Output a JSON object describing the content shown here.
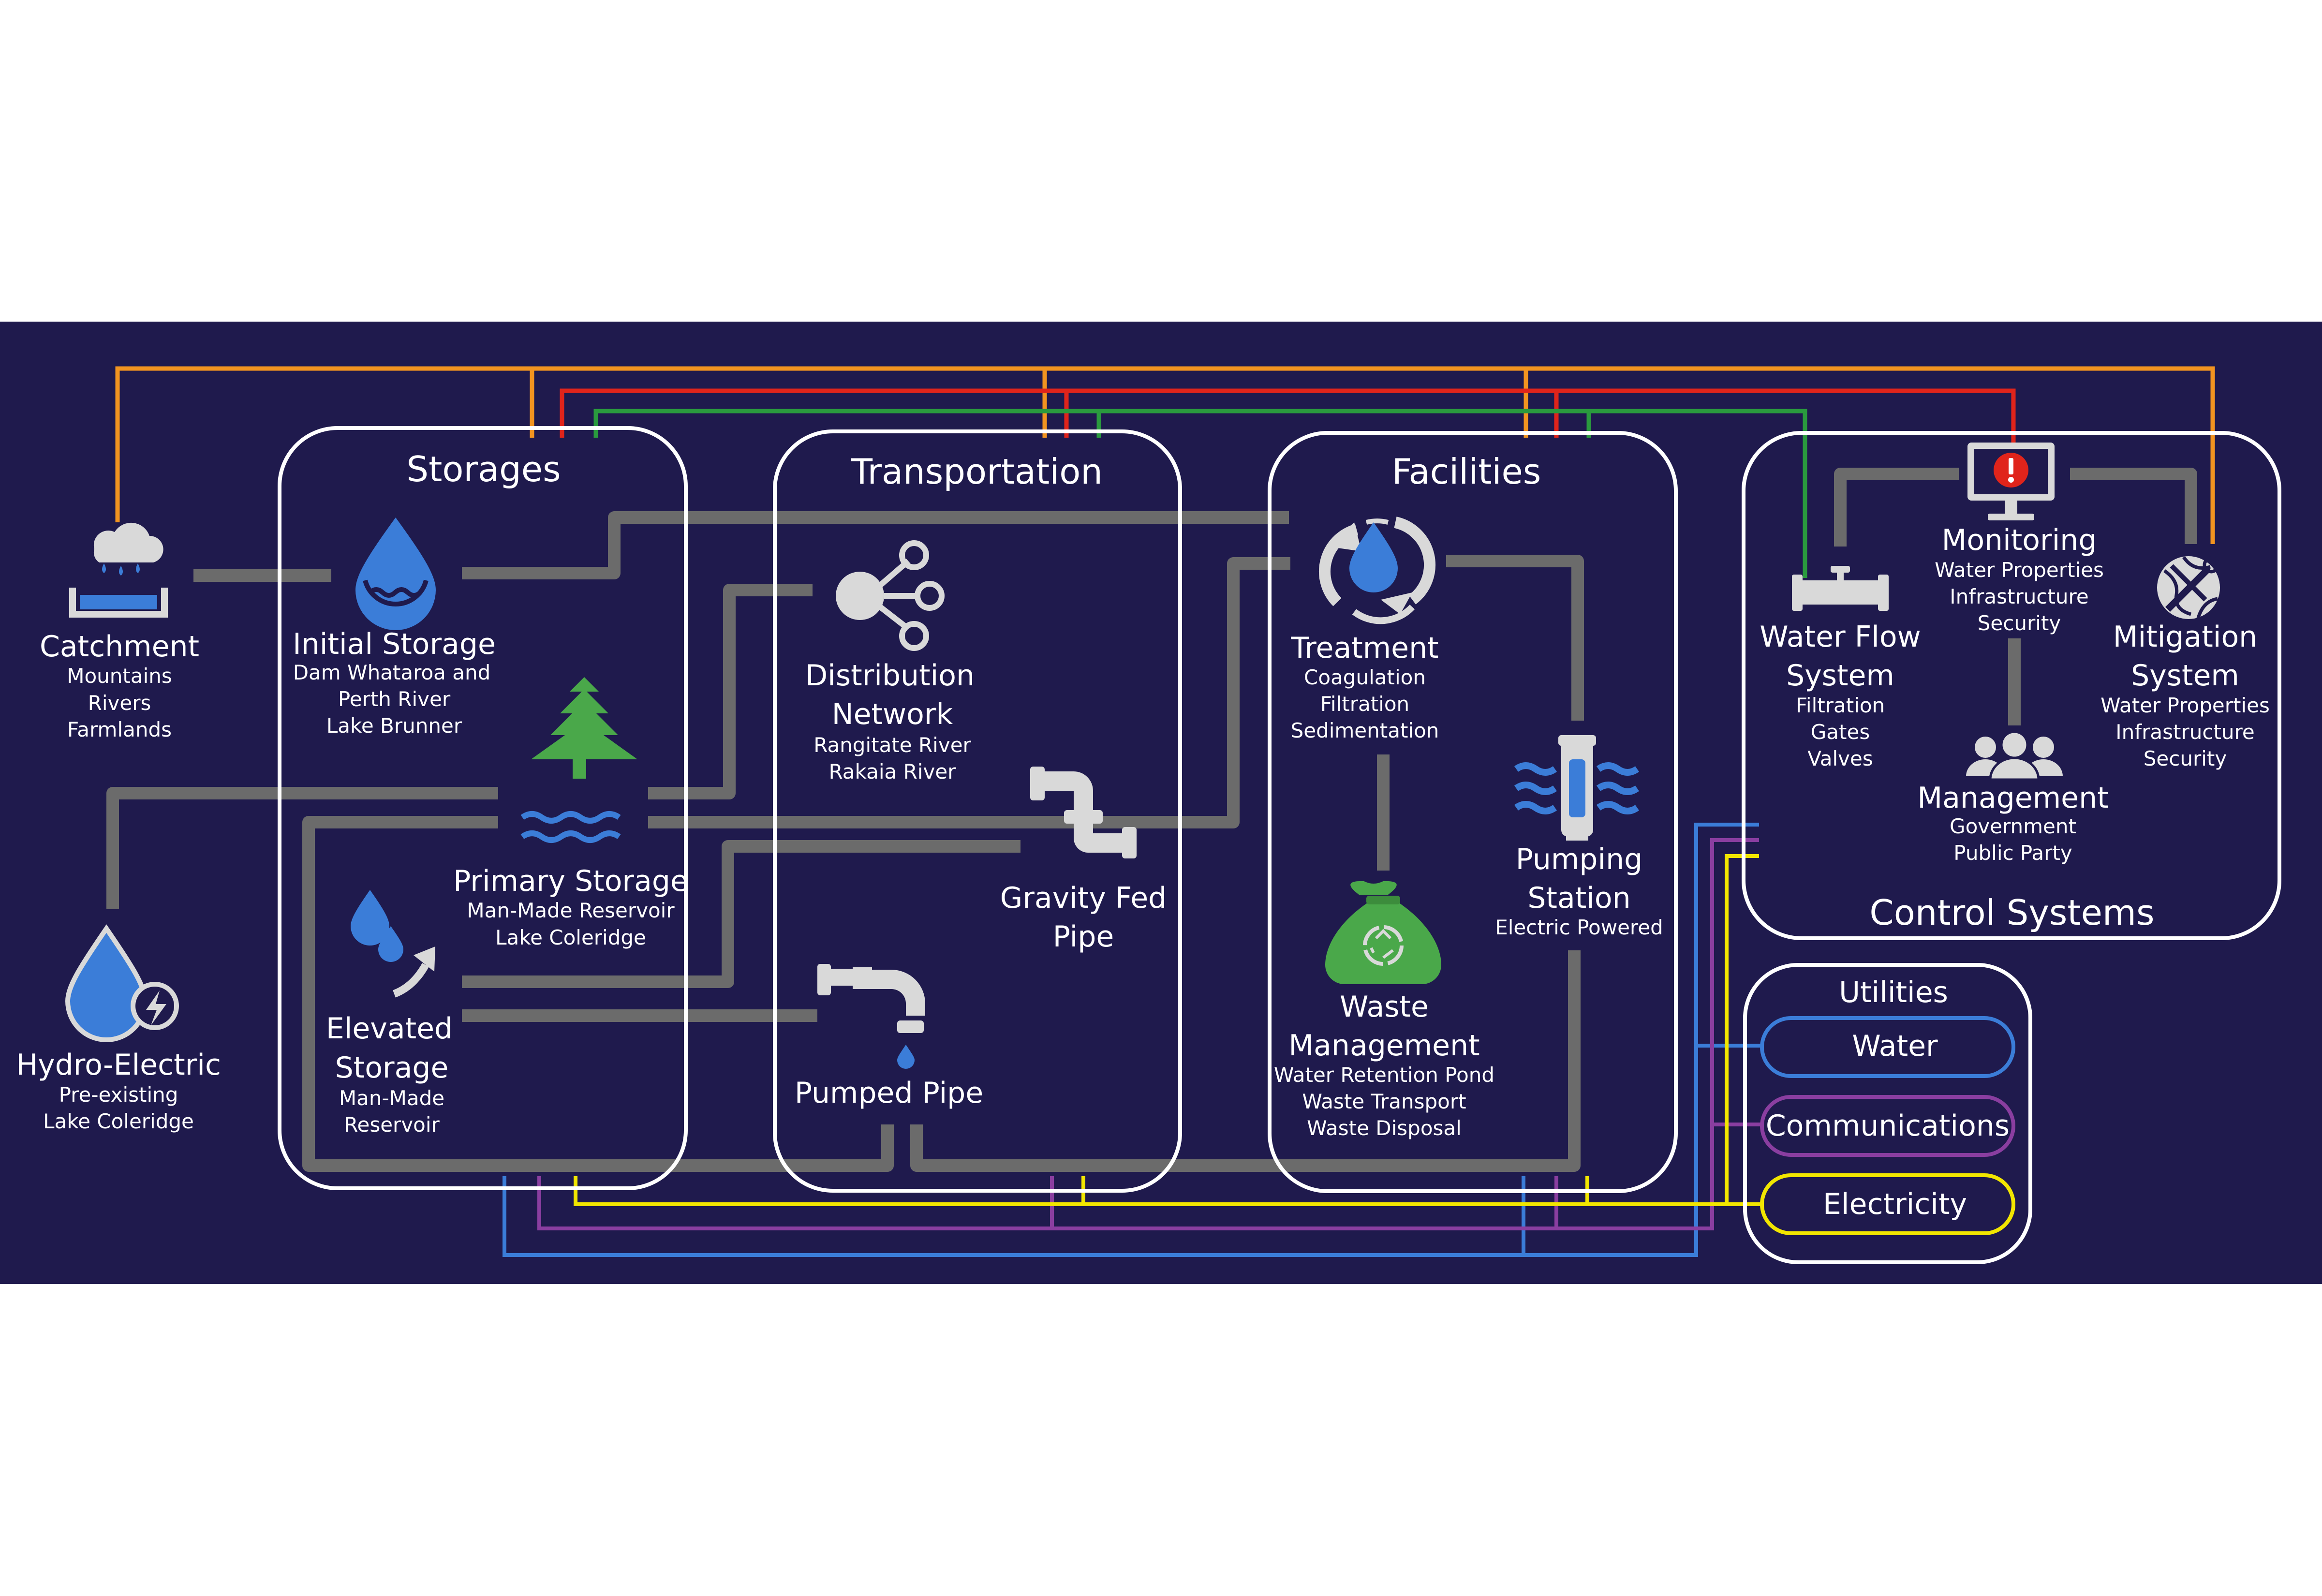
{
  "colors": {
    "background": "#1f1a4d",
    "pipe": "#6b6b6b",
    "panel_border": "#ffffff",
    "water": "#3b7dd8",
    "communications": "#8a3ea0",
    "electricity": "#f2e600",
    "control_orange": "#f29420",
    "control_red": "#e0241b",
    "control_green": "#2a9a3e",
    "tree_green": "#4aa84a",
    "icon_grey": "#d9d9d9"
  },
  "panels": {
    "storages": "Storages",
    "transportation": "Transportation",
    "facilities": "Facilities",
    "control_systems": "Control Systems",
    "utilities": "Utilities"
  },
  "nodes": {
    "catchment": {
      "title": "Catchment",
      "lines": [
        "Mountains",
        "Rivers",
        "Farmlands"
      ],
      "icon": "rain-basin-icon"
    },
    "hydro": {
      "title": "Hydro-Electric",
      "lines": [
        "Pre-existing",
        "Lake Coleridge"
      ],
      "icon": "water-drop-lightning-icon"
    },
    "initial_storage": {
      "title": "Initial Storage",
      "lines": [
        "Dam Whataroa and",
        "Perth River",
        "Lake Brunner"
      ],
      "icon": "water-drop-icon"
    },
    "primary_storage": {
      "title": "Primary Storage",
      "lines": [
        "Man-Made Reservoir",
        "Lake Coleridge"
      ],
      "icon": "tree-water-icon"
    },
    "elevated_storage": {
      "title_lines": [
        "Elevated",
        "Storage"
      ],
      "lines": [
        "Man-Made",
        "Reservoir"
      ],
      "icon": "drops-arrow-icon"
    },
    "distribution": {
      "title_lines": [
        "Distribution",
        "Network"
      ],
      "lines": [
        "Rangitate River",
        "Rakaia River"
      ],
      "icon": "network-icon"
    },
    "gravity_pipe": {
      "title_lines": [
        "Gravity Fed",
        "Pipe"
      ],
      "icon": "pipe-icon"
    },
    "pumped_pipe": {
      "title": "Pumped Pipe",
      "icon": "pipe-drip-icon"
    },
    "treatment": {
      "title": "Treatment",
      "lines": [
        "Coagulation",
        "Filtration",
        "Sedimentation"
      ],
      "icon": "recycle-drop-icon"
    },
    "waste": {
      "title_lines": [
        "Waste",
        "Management"
      ],
      "lines": [
        "Water Retention Pond",
        "Waste Transport",
        "Waste Disposal"
      ],
      "icon": "waste-bag-icon"
    },
    "pumping": {
      "title_lines": [
        "Pumping",
        "Station"
      ],
      "lines": [
        "Electric Powered"
      ],
      "icon": "pump-waves-icon"
    },
    "water_flow": {
      "title_lines": [
        "Water Flow",
        "System"
      ],
      "lines": [
        "Filtration",
        "Gates",
        "Valves"
      ],
      "icon": "valve-icon"
    },
    "monitoring": {
      "title": "Monitoring",
      "lines": [
        "Water Properties",
        "Infrastructure",
        "Security"
      ],
      "icon": "monitor-alert-icon"
    },
    "mitigation": {
      "title_lines": [
        "Mitigation",
        "System"
      ],
      "lines": [
        "Water Properties",
        "Infrastructure",
        "Security"
      ],
      "icon": "globe-tools-icon"
    },
    "management": {
      "title": "Management",
      "lines": [
        "Government",
        "Public Party"
      ],
      "icon": "people-icon"
    }
  },
  "utilities": {
    "water": "Water",
    "communications": "Communications",
    "electricity": "Electricity"
  }
}
